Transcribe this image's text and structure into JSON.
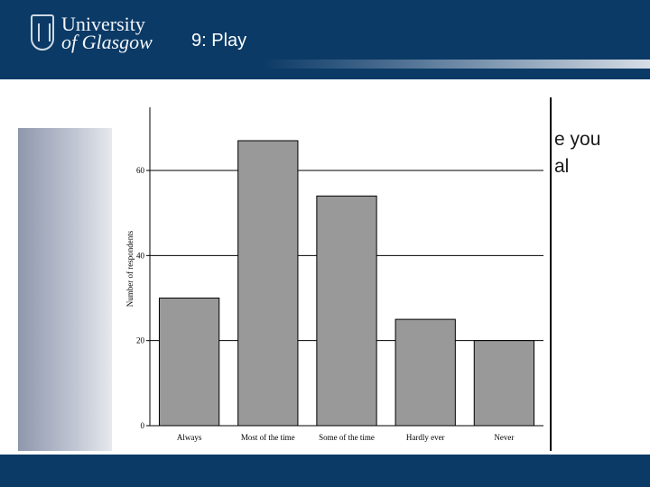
{
  "header": {
    "logo_line1": "University",
    "logo_line2": "of Glasgow",
    "slide_title": "9: Play"
  },
  "background_text": {
    "line1": "e you",
    "line2": "al"
  },
  "colors": {
    "header_blue": "#0b3a66",
    "bar_fill": "#999999"
  },
  "chart_data": {
    "type": "bar",
    "categories": [
      "Always",
      "Most of the time",
      "Some of the time",
      "Hardly ever",
      "Never"
    ],
    "values": [
      30,
      67,
      54,
      25,
      20
    ],
    "title": "",
    "xlabel": "",
    "ylabel": "Number of respondents",
    "ylim": [
      0,
      74
    ],
    "yticks": [
      0,
      20,
      40,
      60
    ],
    "grid": true,
    "legend": "none"
  }
}
